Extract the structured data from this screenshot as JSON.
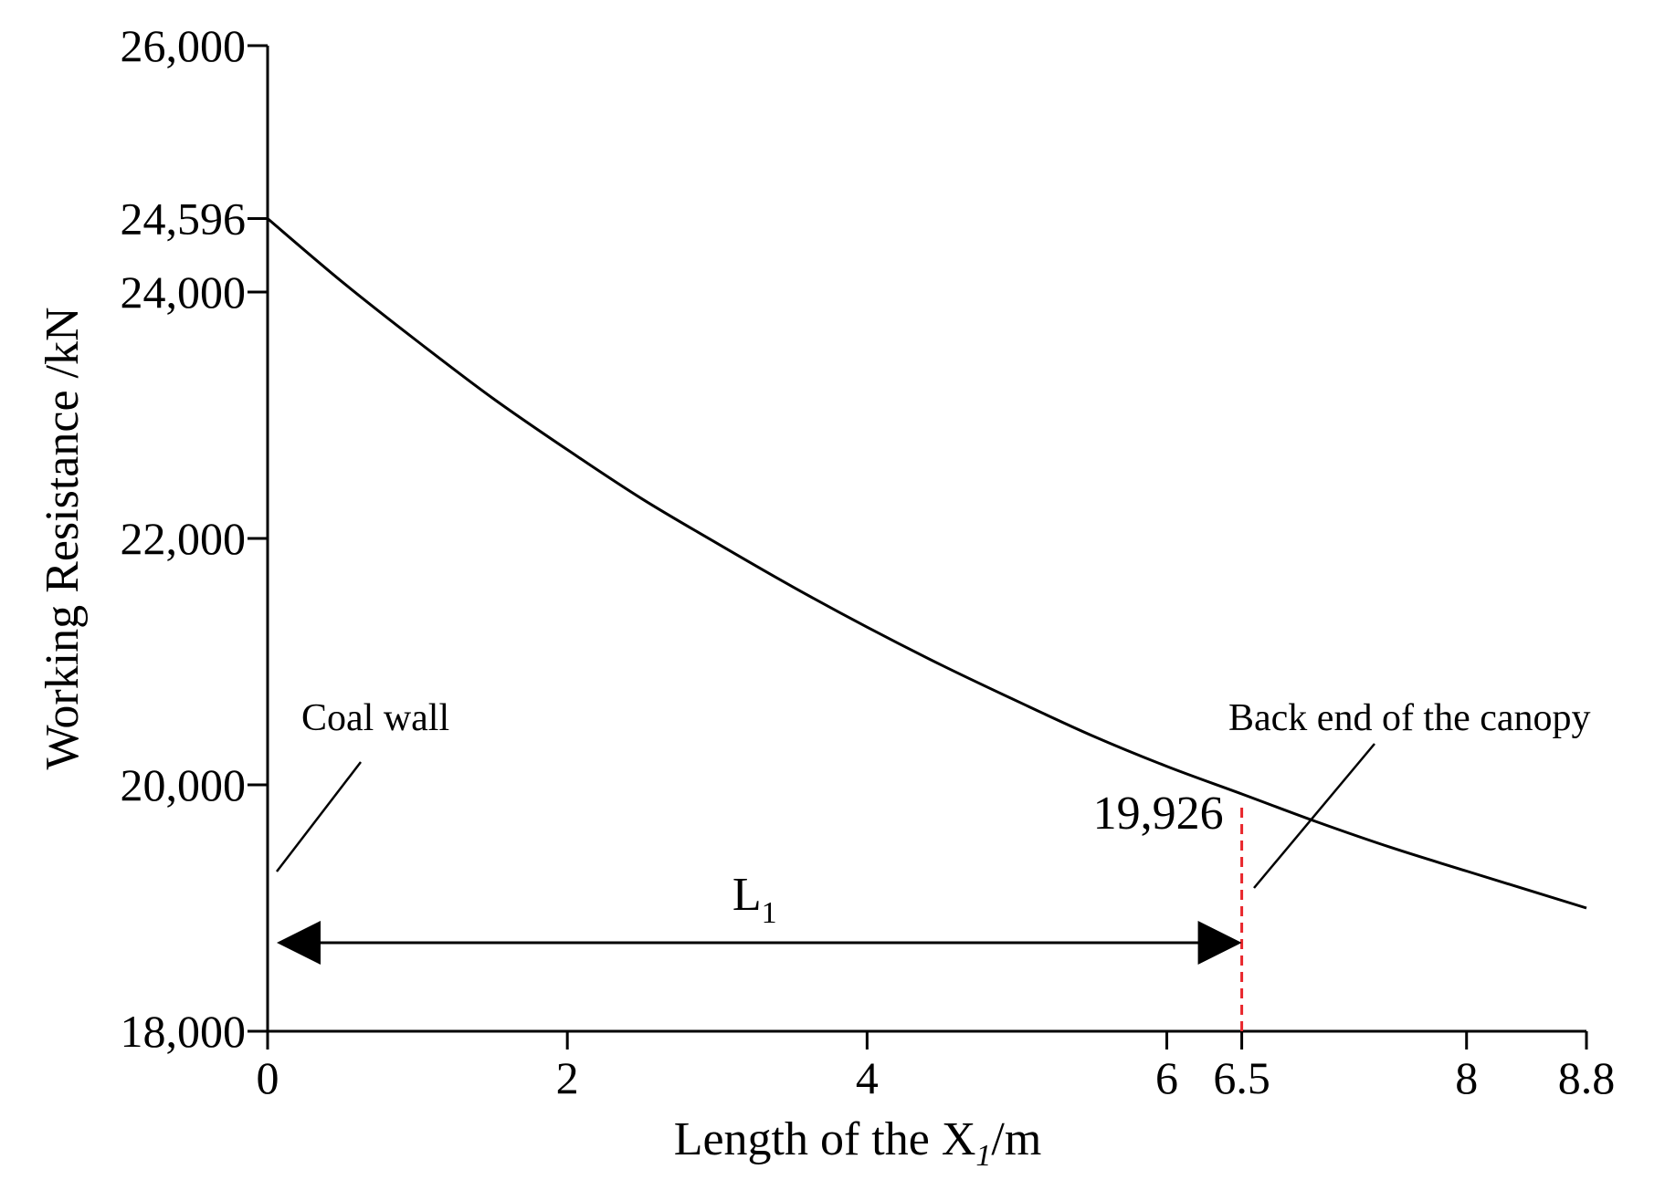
{
  "chart_data": {
    "type": "line",
    "title": "",
    "xlabel": "Length of the X",
    "xlabel_var_sub": "1",
    "xlabel_unit": "/m",
    "ylabel": "Working Resistance /kN",
    "xlim": [
      0,
      8.8
    ],
    "ylim": [
      18000,
      26000
    ],
    "x_ticks": [
      0,
      2,
      4,
      6,
      6.5,
      8,
      8.8
    ],
    "x_tick_labels": [
      "0",
      "2",
      "4",
      "6",
      "6.5",
      "8",
      "8.8"
    ],
    "y_ticks": [
      18000,
      20000,
      22000,
      24000,
      24596,
      26000
    ],
    "y_tick_labels": [
      "18,000",
      "20,000",
      "22,000",
      "24,000",
      "24,596",
      "26,000"
    ],
    "grid": false,
    "legend": "none",
    "series": [
      {
        "color": "#000000",
        "x": [
          0,
          0.5,
          1,
          1.5,
          2,
          2.5,
          3,
          3.5,
          4,
          4.5,
          5,
          5.5,
          6,
          6.5,
          7,
          7.5,
          8,
          8.8
        ],
        "y": [
          24596,
          24080,
          23600,
          23140,
          22720,
          22320,
          21960,
          21610,
          21280,
          20970,
          20680,
          20400,
          20150,
          19926,
          19700,
          19490,
          19300,
          19000
        ]
      }
    ],
    "marker": {
      "x": 6.5,
      "value_label": "19,926",
      "color": "#e8262b",
      "style": "dashed"
    },
    "span": {
      "from": 0,
      "to": 6.5,
      "label_main": "L",
      "label_sub": "1"
    },
    "annotations": [
      {
        "text": "Coal wall"
      },
      {
        "text": "Back end of the canopy"
      }
    ]
  }
}
